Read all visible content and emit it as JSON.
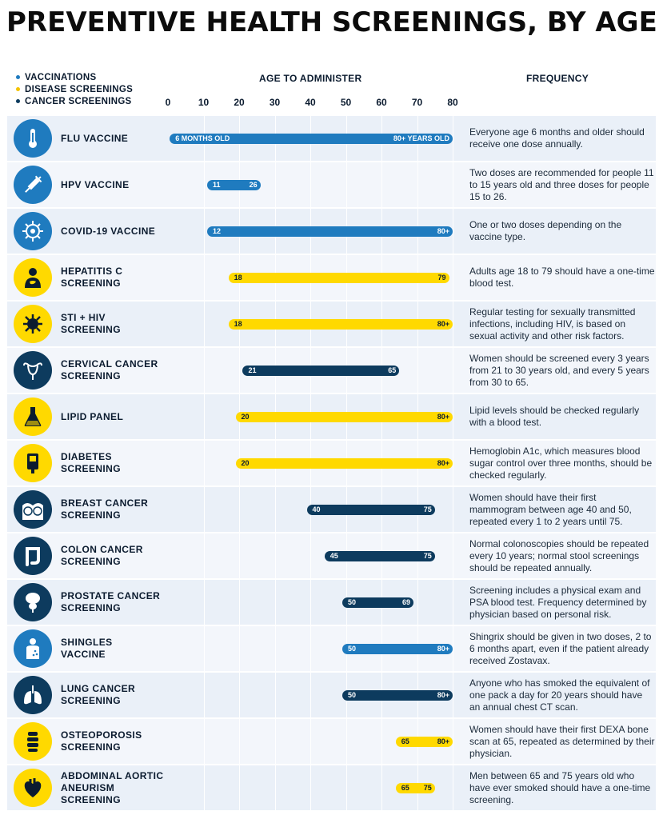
{
  "title": "PREVENTIVE HEALTH SCREENINGS, BY AGE",
  "colors": {
    "vaccination": "#1f7bbf",
    "disease": "#ffd900",
    "cancer": "#0d3b5e"
  },
  "legend": [
    {
      "label": "VACCINATIONS",
      "color": "#1f7bbf"
    },
    {
      "label": "DISEASE SCREENINGS",
      "color": "#f4c300"
    },
    {
      "label": "CANCER SCREENINGS",
      "color": "#0d3b5e"
    }
  ],
  "header": {
    "age": "AGE TO ADMINISTER",
    "frequency": "FREQUENCY"
  },
  "chart_data": {
    "type": "bar",
    "title": "PREVENTIVE HEALTH SCREENINGS, BY AGE",
    "xlabel": "AGE TO ADMINISTER",
    "xlim": [
      0,
      80
    ],
    "ticks": [
      0,
      10,
      20,
      30,
      40,
      50,
      60,
      70,
      80
    ],
    "rows": [
      {
        "name": "FLU VACCINE",
        "category": "vaccination",
        "icon": "thermometer-icon",
        "start": 0.5,
        "end": 80,
        "start_label": "6 MONTHS OLD",
        "end_label": "80+ YEARS OLD",
        "frequency": "Everyone age 6 months and older should receive one dose annually."
      },
      {
        "name": "HPV VACCINE",
        "category": "vaccination",
        "icon": "syringe-icon",
        "start": 11,
        "end": 26,
        "start_label": "11",
        "end_label": "26",
        "frequency": "Two doses are recommended for people 11 to 15 years old and three doses for people 15 to 26."
      },
      {
        "name": "COVID-19 VACCINE",
        "category": "vaccination",
        "icon": "virus-icon",
        "start": 11,
        "end": 80,
        "start_label": "12",
        "end_label": "80+",
        "frequency": "One or two doses depending on the vaccine type."
      },
      {
        "name": "HEPATITIS C\nSCREENING",
        "category": "disease",
        "icon": "liver-person-icon",
        "start": 17,
        "end": 79,
        "start_label": "18",
        "end_label": "79",
        "frequency": "Adults age 18 to 79 should have a one-time blood test."
      },
      {
        "name": "STI + HIV\nSCREENING",
        "category": "disease",
        "icon": "germ-icon",
        "start": 17,
        "end": 80,
        "start_label": "18",
        "end_label": "80+",
        "frequency": "Regular testing for sexually transmitted infections, including HIV, is based on sexual activity and other risk factors."
      },
      {
        "name": "CERVICAL CANCER\nSCREENING",
        "category": "cancer",
        "icon": "uterus-icon",
        "start": 21,
        "end": 65,
        "start_label": "21",
        "end_label": "65",
        "frequency": "Women should be screened every 3 years from 21 to 30 years old, and every 5 years from 30 to 65."
      },
      {
        "name": "LIPID PANEL",
        "category": "disease",
        "icon": "flask-icon",
        "start": 19,
        "end": 80,
        "start_label": "20",
        "end_label": "80+",
        "frequency": "Lipid levels should be checked regularly with a blood test."
      },
      {
        "name": "DIABETES\nSCREENING",
        "category": "disease",
        "icon": "glucose-meter-icon",
        "start": 19,
        "end": 80,
        "start_label": "20",
        "end_label": "80+",
        "frequency": "Hemoglobin A1c, which measures blood sugar control over three months, should be checked regularly."
      },
      {
        "name": "BREAST CANCER\nSCREENING",
        "category": "cancer",
        "icon": "breast-icon",
        "start": 39,
        "end": 75,
        "start_label": "40",
        "end_label": "75",
        "frequency": "Women should have their first mammogram between age 40 and 50, repeated every 1 to 2 years until 75."
      },
      {
        "name": "COLON CANCER\nSCREENING",
        "category": "cancer",
        "icon": "colon-icon",
        "start": 44,
        "end": 75,
        "start_label": "45",
        "end_label": "75",
        "frequency": "Normal colonoscopies should be repeated every 10 years; normal stool screenings should be repeated annually."
      },
      {
        "name": "PROSTATE CANCER\nSCREENING",
        "category": "cancer",
        "icon": "prostate-icon",
        "start": 49,
        "end": 69,
        "start_label": "50",
        "end_label": "69",
        "frequency": "Screening includes a physical exam and PSA blood test. Frequency determined by physician based on personal risk."
      },
      {
        "name": "SHINGLES\nVACCINE",
        "category": "vaccination",
        "icon": "torso-rash-icon",
        "start": 49,
        "end": 80,
        "start_label": "50",
        "end_label": "80+",
        "frequency": "Shingrix should be given in two doses, 2 to 6 months apart, even if the patient already received Zostavax."
      },
      {
        "name": "LUNG CANCER\nSCREENING",
        "category": "cancer",
        "icon": "lungs-icon",
        "start": 49,
        "end": 80,
        "start_label": "50",
        "end_label": "80+",
        "frequency": "Anyone who has smoked the equivalent of one pack a day for 20 years should have an annual chest CT scan."
      },
      {
        "name": "OSTEOPOROSIS\nSCREENING",
        "category": "disease",
        "icon": "spine-icon",
        "start": 64,
        "end": 80,
        "start_label": "65",
        "end_label": "80+",
        "frequency": "Women should have their first DEXA bone scan at 65, repeated as determined by their physician."
      },
      {
        "name": "ABDOMINAL AORTIC\nANEURISM SCREENING",
        "category": "disease",
        "icon": "heart-icon",
        "start": 64,
        "end": 75,
        "start_label": "65",
        "end_label": "75",
        "frequency": "Men between 65 and 75 years old who have ever smoked should have a one-time screening."
      }
    ]
  }
}
